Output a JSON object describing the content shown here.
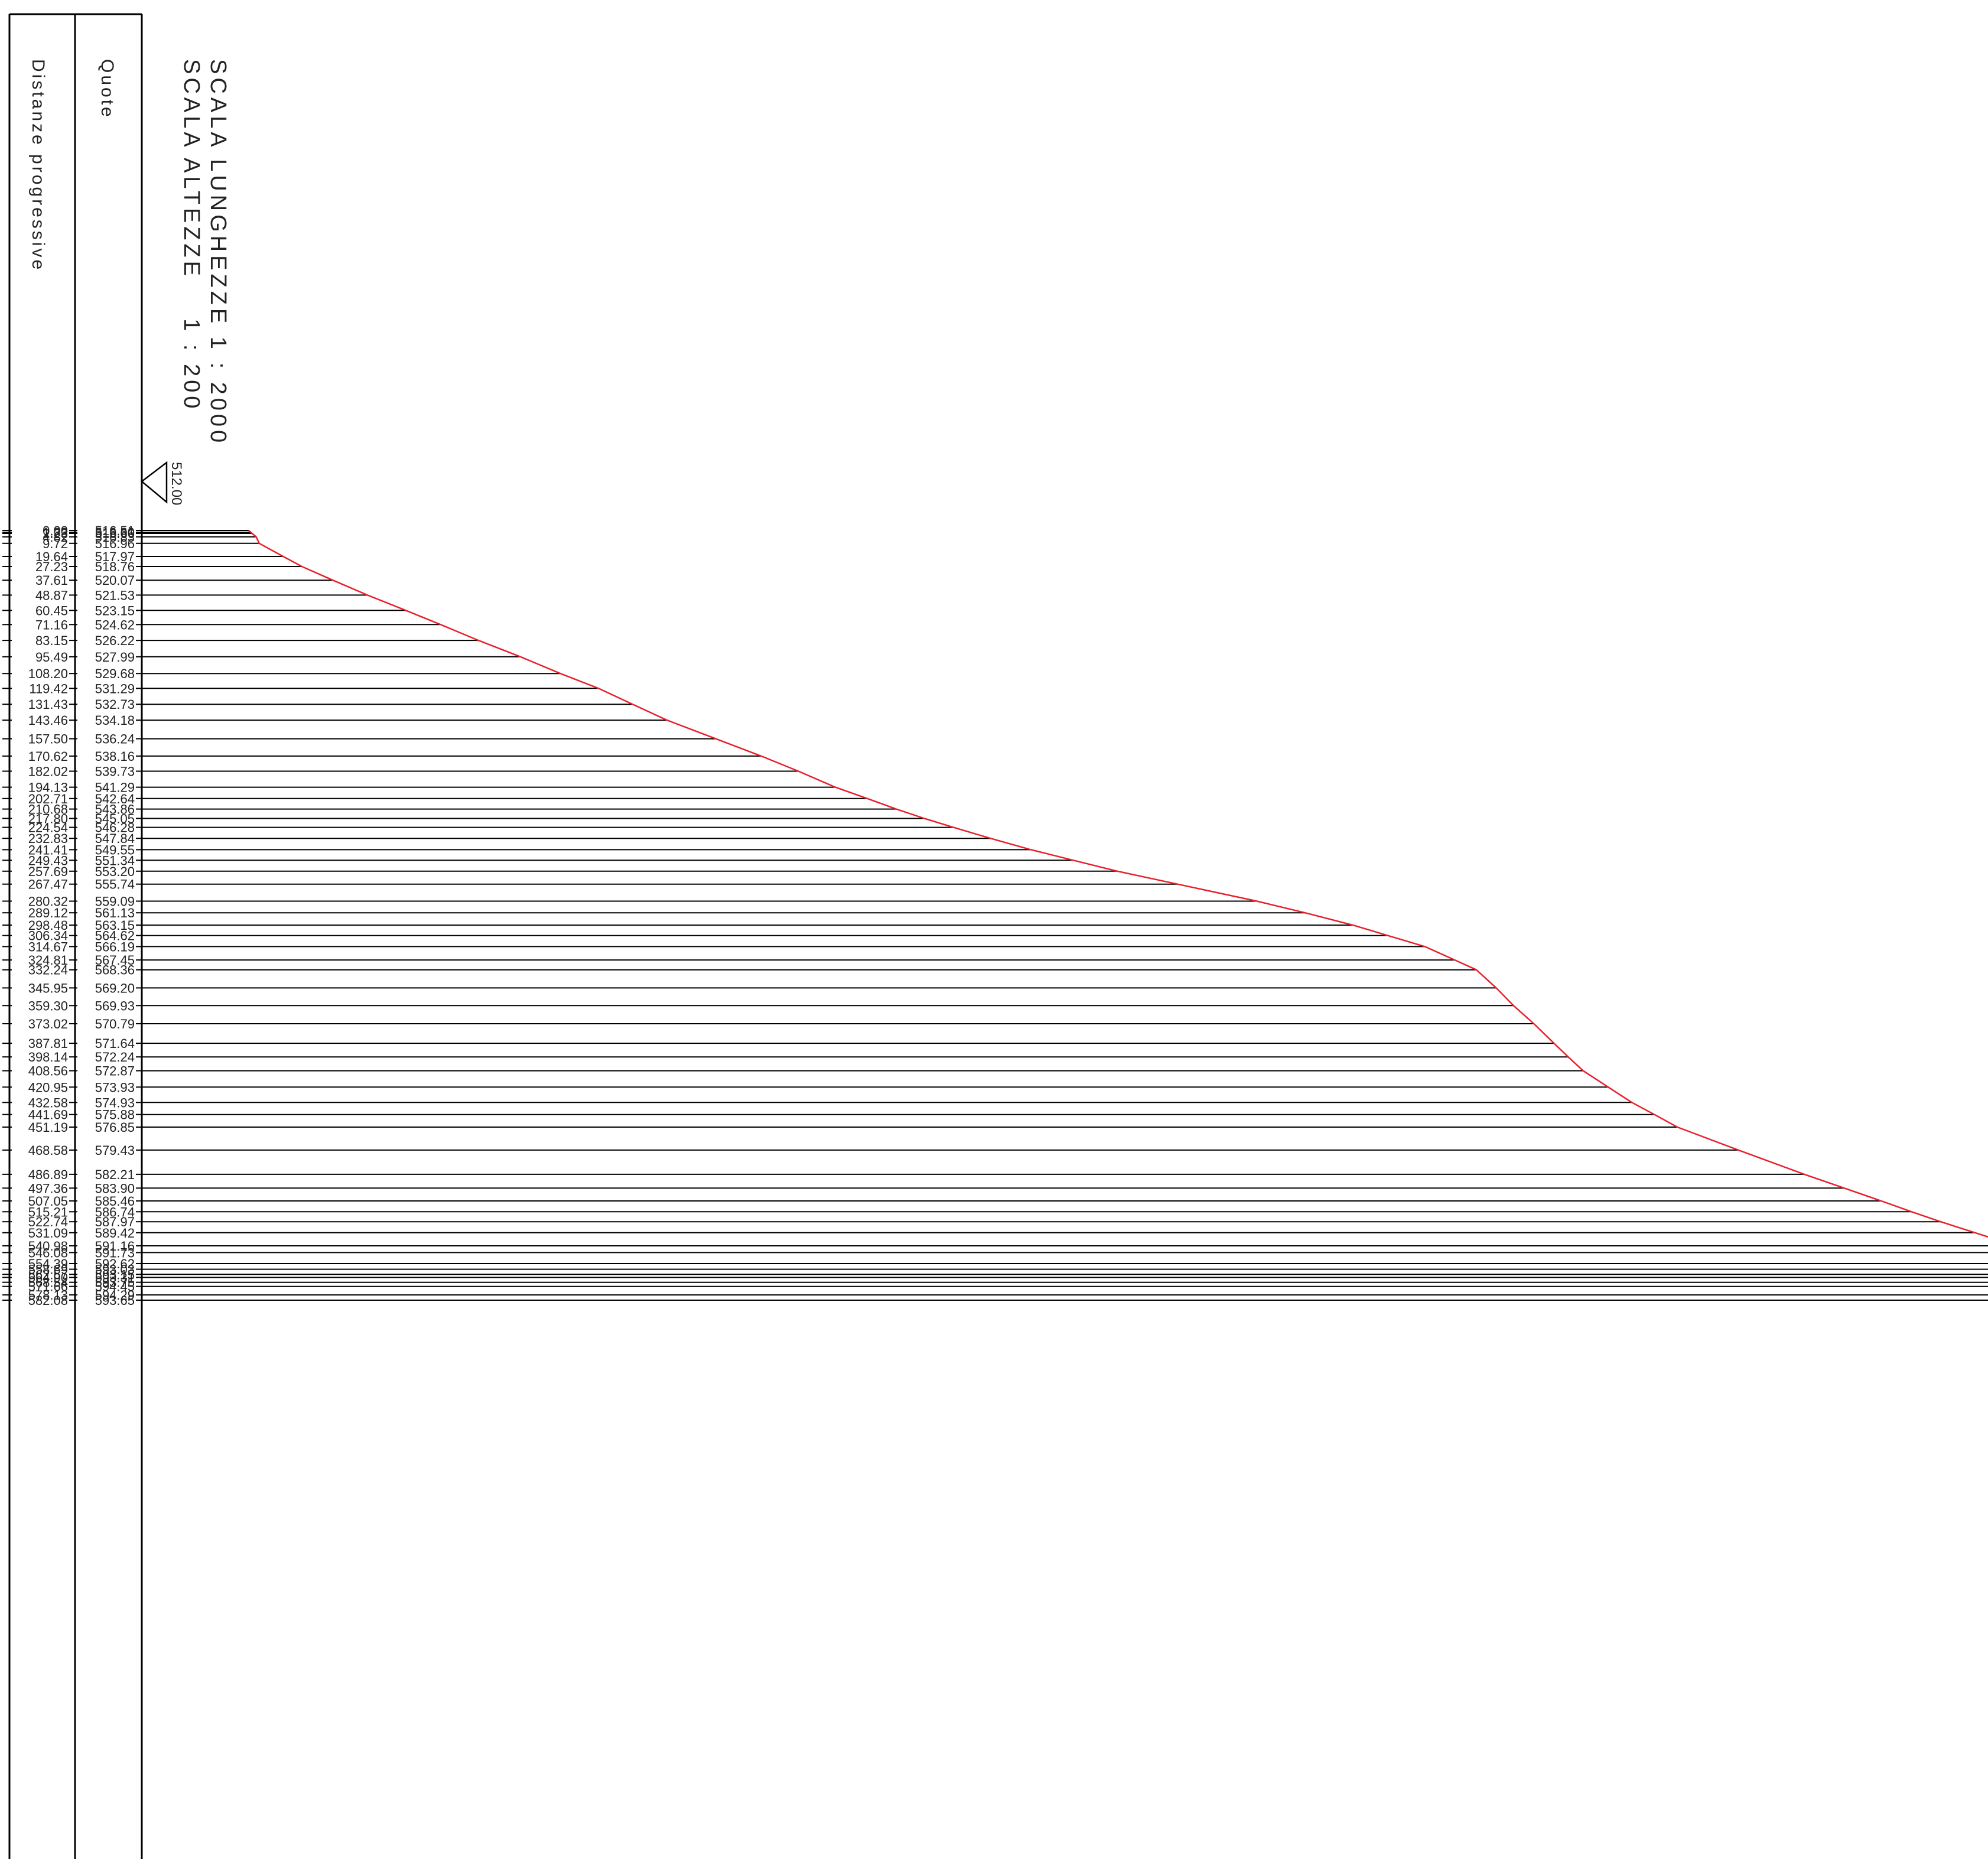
{
  "header": {
    "col1_title": "Distanze progressive",
    "col2_title": "Quote",
    "scale_lengths": "SCALA LUNGHEZZE 1 : 2000",
    "scale_heights": "SCALA ALTEZZE    1 : 200",
    "datum": "512.00"
  },
  "colors": {
    "profile": "#e8202a",
    "lines": "#000000",
    "text": "#222222"
  },
  "chart_data": {
    "type": "line",
    "datum": 512.0,
    "stations": [
      {
        "d": "0.00",
        "q": "516.51",
        "offset": 0.0
      },
      {
        "d": "1.33",
        "q": "516.60",
        "offset": 0.0
      },
      {
        "d": "2.23",
        "q": "516.66",
        "offset": 0.0
      },
      {
        "d": "4.82",
        "q": "516.83",
        "offset": 0.0
      },
      {
        "d": "9.72",
        "q": "516.96",
        "offset": 0.0
      },
      {
        "d": "19.64",
        "q": "517.97",
        "offset": 0.0
      },
      {
        "d": "27.23",
        "q": "518.76",
        "offset": 0.0
      },
      {
        "d": "37.61",
        "q": "520.07",
        "offset": 0.0
      },
      {
        "d": "48.87",
        "q": "521.53",
        "offset": 0.0
      },
      {
        "d": "60.45",
        "q": "523.15",
        "offset": 0.0
      },
      {
        "d": "71.16",
        "q": "524.62",
        "offset": 0.0
      },
      {
        "d": "83.15",
        "q": "526.22",
        "offset": 0.0
      },
      {
        "d": "95.49",
        "q": "527.99",
        "offset": 0.0
      },
      {
        "d": "108.20",
        "q": "529.68",
        "offset": 0.0
      },
      {
        "d": "119.42",
        "q": "531.29",
        "offset": 0.0
      },
      {
        "d": "131.43",
        "q": "532.73",
        "offset": 0.0
      },
      {
        "d": "143.46",
        "q": "534.18",
        "offset": 0.0
      },
      {
        "d": "157.50",
        "q": "536.24",
        "offset": 0.0
      },
      {
        "d": "170.62",
        "q": "538.16",
        "offset": 0.0
      },
      {
        "d": "182.02",
        "q": "539.73",
        "offset": 0.0
      },
      {
        "d": "194.13",
        "q": "541.29",
        "offset": 0.0
      },
      {
        "d": "202.71",
        "q": "542.64",
        "offset": 0.0
      },
      {
        "d": "210.68",
        "q": "543.86",
        "offset": 0.0
      },
      {
        "d": "217.80",
        "q": "545.05",
        "offset": 0.0
      },
      {
        "d": "224.54",
        "q": "546.28",
        "offset": 0.0
      },
      {
        "d": "232.83",
        "q": "547.84",
        "offset": 0.0
      },
      {
        "d": "241.41",
        "q": "549.55",
        "offset": 0.0
      },
      {
        "d": "249.43",
        "q": "551.34",
        "offset": 0.0
      },
      {
        "d": "257.69",
        "q": "553.20",
        "offset": 0.0
      },
      {
        "d": "267.47",
        "q": "555.74",
        "offset": 0.0
      },
      {
        "d": "280.32",
        "q": "559.09",
        "offset": 0.0
      },
      {
        "d": "289.12",
        "q": "561.13",
        "offset": 0.0
      },
      {
        "d": "298.48",
        "q": "563.15",
        "offset": 0.0
      },
      {
        "d": "306.34",
        "q": "564.62",
        "offset": 0.0
      },
      {
        "d": "314.67",
        "q": "566.19",
        "offset": 0.0
      },
      {
        "d": "324.81",
        "q": "567.45",
        "offset": 0.0
      },
      {
        "d": "332.24",
        "q": "568.36",
        "offset": 0.0
      },
      {
        "d": "345.95",
        "q": "569.20",
        "offset": 0.0
      },
      {
        "d": "359.30",
        "q": "569.93",
        "offset": 0.0
      },
      {
        "d": "373.02",
        "q": "570.79",
        "offset": 0.0
      },
      {
        "d": "387.81",
        "q": "571.64",
        "offset": 0.0
      },
      {
        "d": "398.14",
        "q": "572.24",
        "offset": 0.0
      },
      {
        "d": "408.56",
        "q": "572.87",
        "offset": 0.0
      },
      {
        "d": "420.95",
        "q": "573.93",
        "offset": 0.0
      },
      {
        "d": "432.58",
        "q": "574.93",
        "offset": 0.0
      },
      {
        "d": "441.69",
        "q": "575.88",
        "offset": 0.0
      },
      {
        "d": "451.19",
        "q": "576.85",
        "offset": 0.0
      },
      {
        "d": "468.58",
        "q": "579.43",
        "offset": 0.0
      },
      {
        "d": "486.89",
        "q": "582.21",
        "offset": 0.0
      },
      {
        "d": "497.36",
        "q": "583.90",
        "offset": 0.0
      },
      {
        "d": "507.05",
        "q": "585.46",
        "offset": 0.0
      },
      {
        "d": "515.21",
        "q": "586.74",
        "offset": 0.0
      },
      {
        "d": "522.74",
        "q": "587.97",
        "offset": 0.0
      },
      {
        "d": "531.09",
        "q": "589.42",
        "offset": 0.0
      },
      {
        "d": "540.98",
        "q": "591.16",
        "offset": 0.0
      },
      {
        "d": "546.08",
        "q": "591.73",
        "offset": 0.0
      },
      {
        "d": "554.39",
        "q": "592.62",
        "offset": 0.0
      },
      {
        "d": "558.69",
        "q": "593.03",
        "offset": 0.0
      },
      {
        "d": "562.57",
        "q": "593.15",
        "offset": 0.0
      },
      {
        "d": "564.90",
        "q": "593.31",
        "offset": 0.0
      },
      {
        "d": "568.54",
        "q": "593.75",
        "offset": 0.0
      },
      {
        "d": "571.66",
        "q": "594.45",
        "offset": 0.0
      },
      {
        "d": "578.13",
        "q": "594.29",
        "offset": 0.0
      },
      {
        "d": "582.08",
        "q": "593.65",
        "offset": 0.0
      }
    ]
  }
}
